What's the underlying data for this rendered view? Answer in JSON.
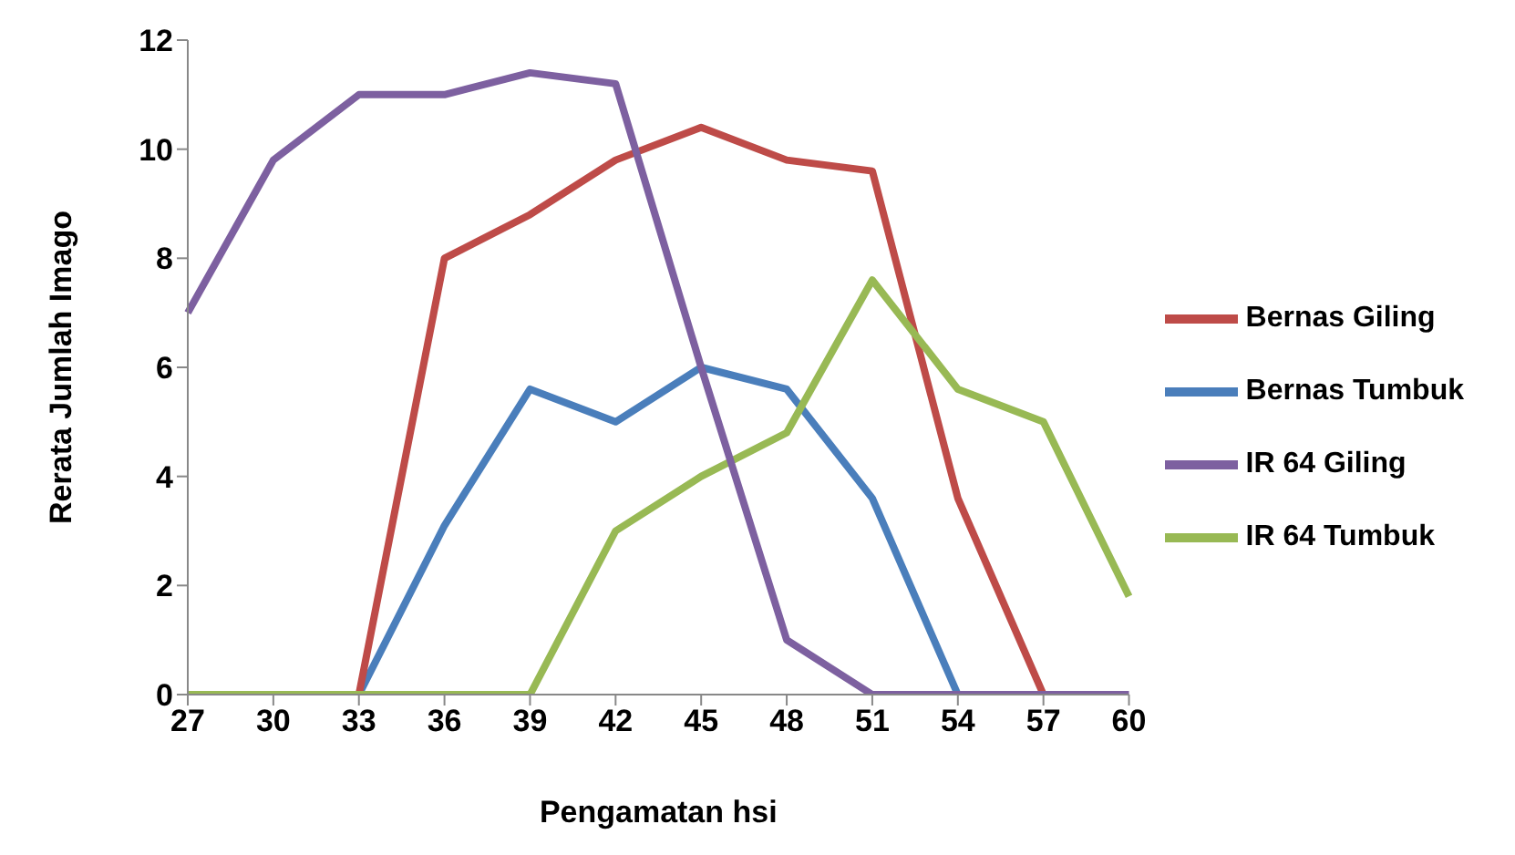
{
  "chart_data": {
    "type": "line",
    "xlabel": "Pengamatan hsi",
    "ylabel": "Rerata Jumlah Imago",
    "categories": [
      "27",
      "30",
      "33",
      "36",
      "39",
      "42",
      "45",
      "48",
      "51",
      "54",
      "57",
      "60"
    ],
    "series": [
      {
        "name": "Bernas Tumbuk",
        "color": "#4a7ebb",
        "values": [
          0,
          0,
          0,
          3.1,
          5.6,
          5.0,
          6.0,
          5.6,
          3.6,
          0,
          null,
          null
        ]
      },
      {
        "name": "Bernas Giling",
        "color": "#be4b48",
        "values": [
          0,
          0,
          0,
          8.0,
          8.8,
          9.8,
          10.4,
          9.8,
          9.6,
          3.6,
          0,
          null
        ]
      },
      {
        "name": "IR 64 Tumbuk",
        "color": "#98b954",
        "values": [
          0,
          0,
          0,
          0,
          0,
          3.0,
          4.0,
          4.8,
          7.6,
          5.6,
          5.0,
          1.8
        ]
      },
      {
        "name": "IR 64 Giling",
        "color": "#7d60a0",
        "values": [
          7.0,
          9.8,
          11.0,
          11.0,
          11.4,
          11.2,
          6.0,
          1.0,
          0,
          0,
          0,
          0
        ]
      }
    ],
    "ylim": [
      0,
      12
    ],
    "yticks": [
      0,
      2,
      4,
      6,
      8,
      10,
      12
    ],
    "grid": false,
    "legend": "right",
    "marker": "none",
    "line_style": "solid"
  }
}
